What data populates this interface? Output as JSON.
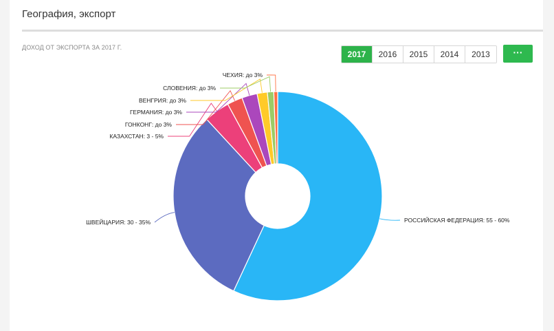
{
  "header": {
    "title": "География, экспорт",
    "subtitle": "ДОХОД ОТ ЭКСПОРТА ЗА 2017 Г."
  },
  "years": {
    "items": [
      "2017",
      "2016",
      "2015",
      "2014",
      "2013"
    ],
    "selected": "2017",
    "more_label": "···"
  },
  "colors": {
    "accent": "#2db34a"
  },
  "chart_data": {
    "type": "pie",
    "donut": true,
    "slices": [
      {
        "label": "РОССИЙСКАЯ ФЕДЕРАЦИЯ: 55 - 60%",
        "value": 57.5,
        "color": "#29b6f6"
      },
      {
        "label": "ШВЕЙЦАРИЯ: 30 - 35%",
        "value": 31.5,
        "color": "#5c6bc0"
      },
      {
        "label": "КАЗАХСТАН: 3 - 5%",
        "value": 4,
        "color": "#ec407a"
      },
      {
        "label": "ГОНКОНГ: до 3%",
        "value": 2.4,
        "color": "#ef5350"
      },
      {
        "label": "ГЕРМАНИЯ: до 3%",
        "value": 2.4,
        "color": "#ab47bc"
      },
      {
        "label": "ВЕНГРИЯ: до 3%",
        "value": 1.6,
        "color": "#ffca28"
      },
      {
        "label": "СЛОВЕНИЯ: до 3%",
        "value": 1.0,
        "color": "#9ccc65"
      },
      {
        "label": "ЧЕХИЯ: до 3%",
        "value": 0.6,
        "color": "#ff7043"
      }
    ]
  }
}
